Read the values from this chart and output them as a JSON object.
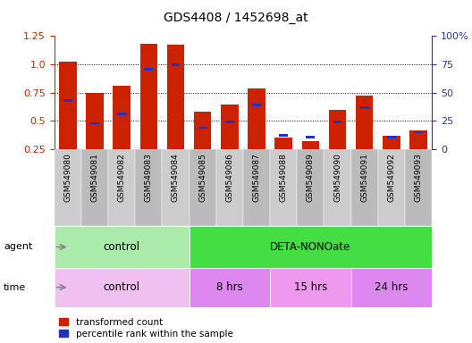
{
  "title": "GDS4408 / 1452698_at",
  "samples": [
    "GSM549080",
    "GSM549081",
    "GSM549082",
    "GSM549083",
    "GSM549084",
    "GSM549085",
    "GSM549086",
    "GSM549087",
    "GSM549088",
    "GSM549089",
    "GSM549090",
    "GSM549091",
    "GSM549092",
    "GSM549093"
  ],
  "red_values": [
    1.02,
    0.75,
    0.81,
    1.18,
    1.17,
    0.585,
    0.645,
    0.79,
    0.355,
    0.32,
    0.595,
    0.72,
    0.365,
    0.415
  ],
  "blue_values": [
    0.68,
    0.48,
    0.565,
    0.955,
    0.995,
    0.44,
    0.49,
    0.64,
    0.37,
    0.355,
    0.49,
    0.615,
    0.355,
    0.4
  ],
  "ylim_left": [
    0.25,
    1.25
  ],
  "ylim_right": [
    0,
    100
  ],
  "yticks_left": [
    0.25,
    0.5,
    0.75,
    1.0,
    1.25
  ],
  "yticks_right": [
    0,
    25,
    50,
    75,
    100
  ],
  "ytick_labels_right": [
    "0",
    "25",
    "50",
    "75",
    "100%"
  ],
  "bar_color": "#cc2200",
  "blue_color": "#2233bb",
  "agent_groups": [
    {
      "label": "control",
      "start": 0,
      "end": 5,
      "color": "#aaeaaa"
    },
    {
      "label": "DETA-NONOate",
      "start": 5,
      "end": 14,
      "color": "#44dd44"
    }
  ],
  "time_groups": [
    {
      "label": "control",
      "start": 0,
      "end": 5,
      "color": "#f0c0f0"
    },
    {
      "label": "8 hrs",
      "start": 5,
      "end": 8,
      "color": "#dd88ee"
    },
    {
      "label": "15 hrs",
      "start": 8,
      "end": 11,
      "color": "#ee99ee"
    },
    {
      "label": "24 hrs",
      "start": 11,
      "end": 14,
      "color": "#dd88ee"
    }
  ],
  "legend_red": "transformed count",
  "legend_blue": "percentile rank within the sample",
  "sample_bg_color": "#cccccc",
  "sample_bg_alt_color": "#bbbbbb"
}
